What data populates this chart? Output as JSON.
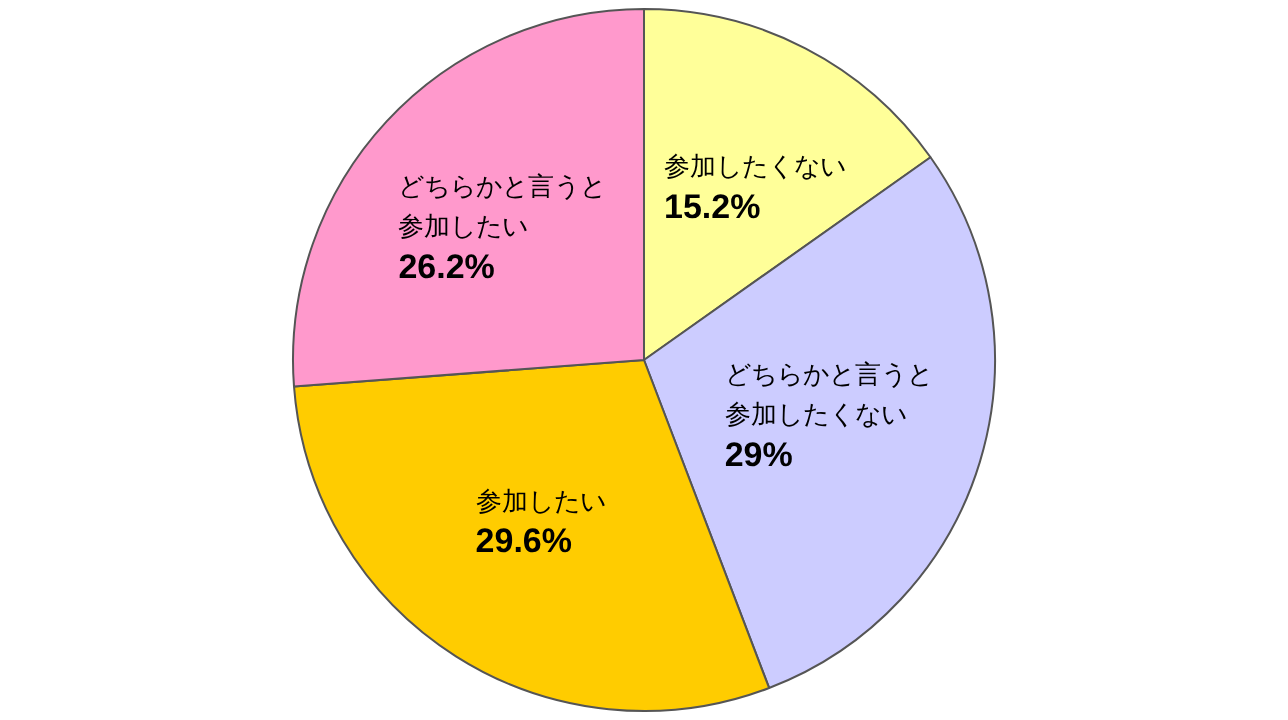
{
  "chart_data": {
    "type": "pie",
    "categories": [
      "参加したくない",
      "どちらかと言うと参加したくない",
      "参加したい",
      "どちらかと言うと参加したい"
    ],
    "values": [
      15.2,
      29,
      29.6,
      26.2
    ],
    "colors": [
      "#ffff99",
      "#ccccff",
      "#ffcc00",
      "#ff99cc"
    ],
    "value_labels": [
      "15.2%",
      "29%",
      "29.6%",
      "26.2%"
    ],
    "legend": false
  }
}
